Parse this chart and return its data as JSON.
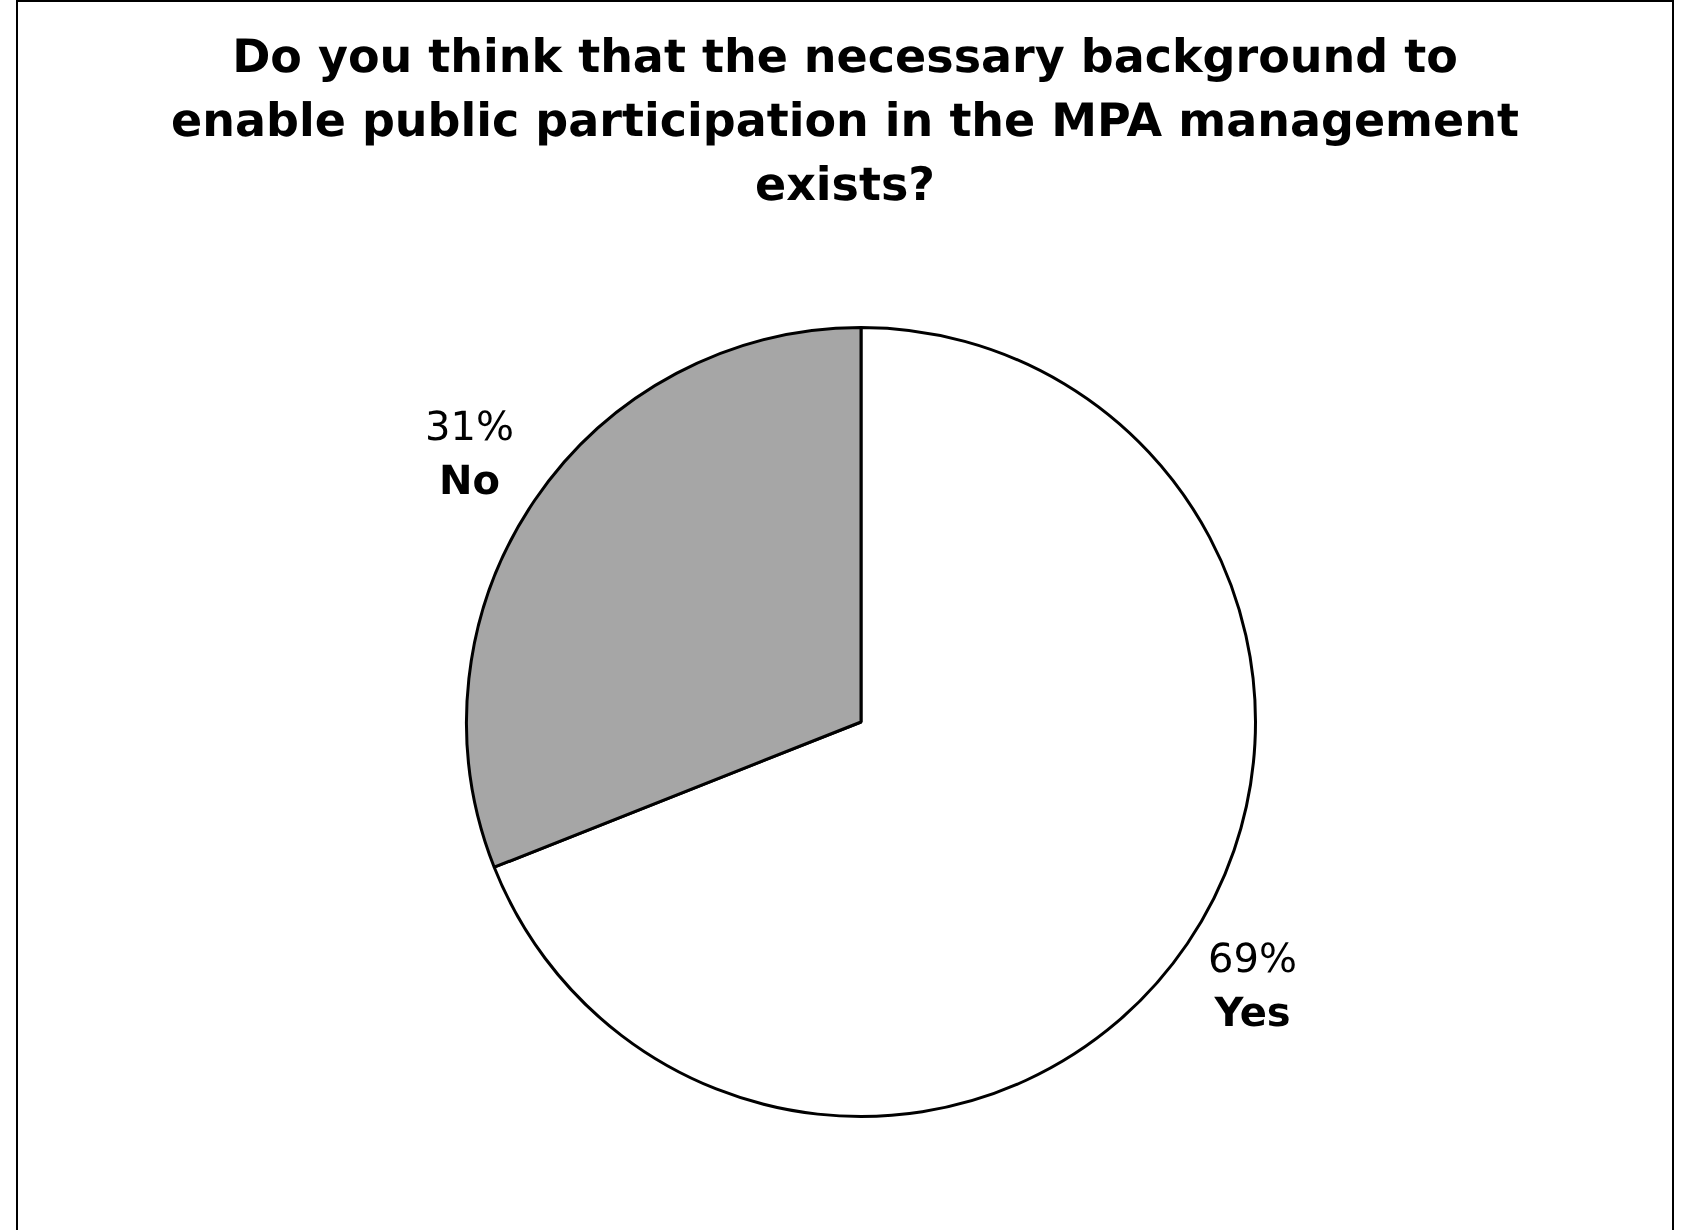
{
  "chart_data": {
    "type": "pie",
    "title": "Do you think that the necessary background to enable public participation in the MPA management exists?",
    "categories": [
      "Yes",
      "No"
    ],
    "values": [
      69,
      31
    ],
    "value_labels": [
      "69%",
      "31%"
    ],
    "colors": [
      "#ffffff",
      "#a6a6a6"
    ],
    "legend": false
  }
}
